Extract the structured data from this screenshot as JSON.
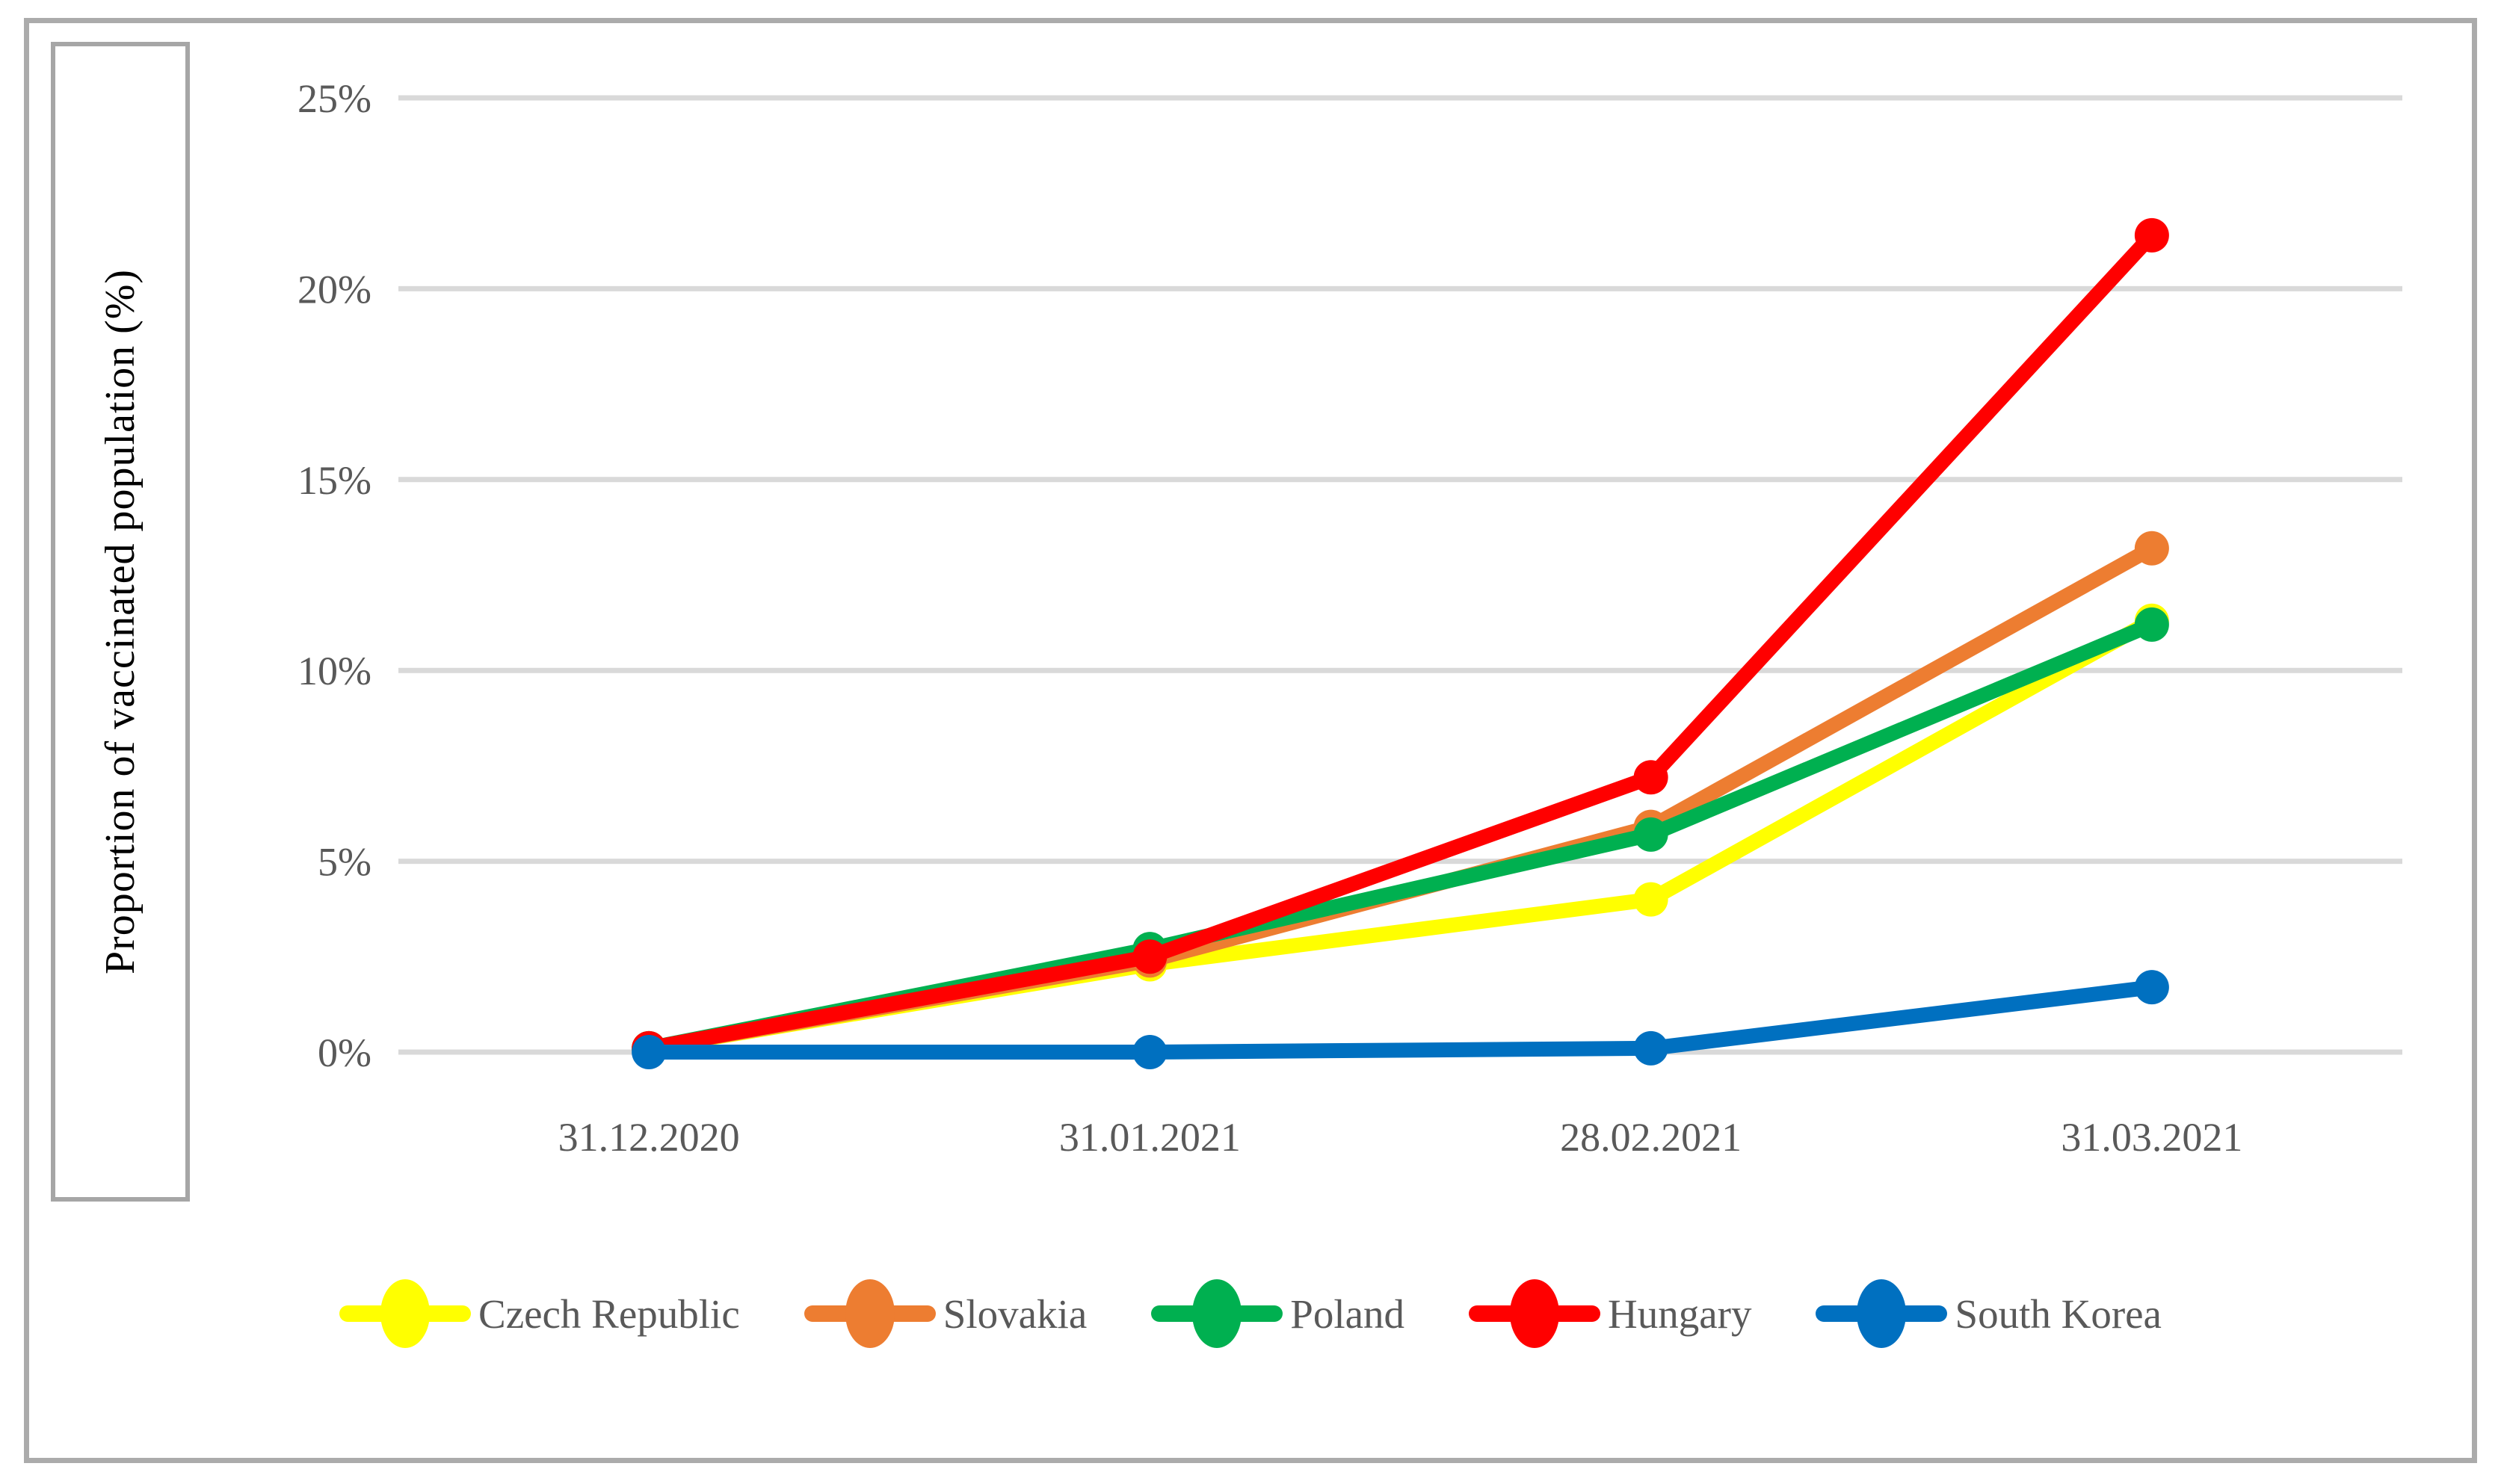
{
  "figure": {
    "y_axis_title": "Proportion of vaccinated population (%)"
  },
  "chart_data": {
    "type": "line",
    "title": "",
    "xlabel": "",
    "ylabel": "Proportion of vaccinated population (%)",
    "categories": [
      "31.12.2020",
      "31.01.2021",
      "28.02.2021",
      "31.03.2021"
    ],
    "series": [
      {
        "name": "Czech Republic",
        "color": "#FFFF00",
        "values": [
          0.1,
          2.3,
          4.0,
          11.3
        ]
      },
      {
        "name": "Slovakia",
        "color": "#ED7D31",
        "values": [
          0.1,
          2.4,
          5.9,
          13.2
        ]
      },
      {
        "name": "Poland",
        "color": "#00B050",
        "values": [
          0.1,
          2.7,
          5.7,
          11.2
        ]
      },
      {
        "name": "Hungary",
        "color": "#FF0000",
        "values": [
          0.1,
          2.5,
          7.2,
          21.4
        ]
      },
      {
        "name": "South Korea",
        "color": "#0070C0",
        "values": [
          0.0,
          0.0,
          0.1,
          1.7
        ]
      }
    ],
    "ylim": [
      0,
      25
    ],
    "ytick_step": 5,
    "ytick_labels": [
      "0%",
      "5%",
      "10%",
      "15%",
      "20%",
      "25%"
    ],
    "grid": true,
    "legend_position": "bottom",
    "styles": {
      "gridline_color": "#D9D9D9",
      "tick_text_color": "#595959",
      "axis_title_color": "#000000",
      "box_border_color": "#A6A6A6",
      "figure_border_color": "#ABABAB"
    }
  }
}
